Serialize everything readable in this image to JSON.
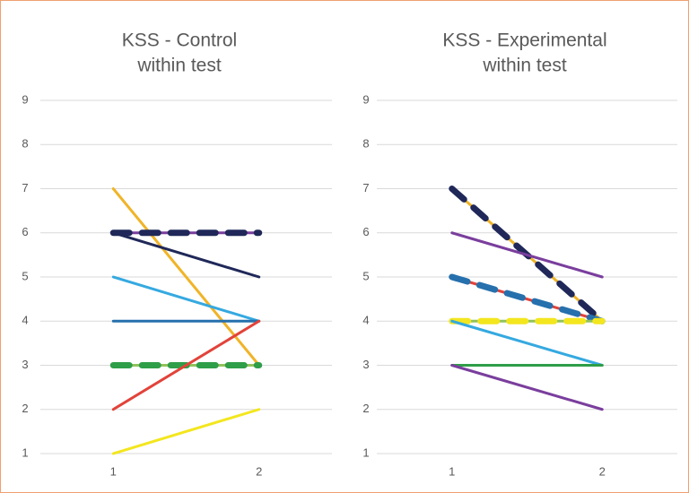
{
  "chart_data": [
    {
      "type": "line",
      "title": [
        "KSS - Control",
        "within test"
      ],
      "categories": [
        "1",
        "2"
      ],
      "ylim": [
        1,
        9
      ],
      "yticks": [
        1,
        2,
        3,
        4,
        5,
        6,
        7,
        8,
        9
      ],
      "grid": true,
      "series": [
        {
          "color": "#f0b428",
          "values": [
            7,
            3
          ]
        },
        {
          "color": "#1f2858",
          "values": [
            6,
            5
          ]
        },
        {
          "color": "#7a3e9d",
          "values": [
            6,
            6
          ]
        },
        {
          "color": "#1f2858",
          "values": [
            6,
            6
          ],
          "dash": true
        },
        {
          "color": "#35a9e0",
          "values": [
            5,
            4
          ]
        },
        {
          "color": "#2670ad",
          "values": [
            4,
            4
          ]
        },
        {
          "color": "#92c35c",
          "values": [
            3,
            3
          ]
        },
        {
          "color": "#2f9e48",
          "values": [
            3,
            3
          ],
          "dash": true
        },
        {
          "color": "#e2433a",
          "values": [
            2,
            4
          ]
        },
        {
          "color": "#f3e61e",
          "values": [
            1,
            2
          ]
        }
      ]
    },
    {
      "type": "line",
      "title": [
        "KSS - Experimental",
        "within test"
      ],
      "categories": [
        "1",
        "2"
      ],
      "ylim": [
        1,
        9
      ],
      "yticks": [
        1,
        2,
        3,
        4,
        5,
        6,
        7,
        8,
        9
      ],
      "grid": true,
      "series": [
        {
          "color": "#f0b428",
          "values": [
            7,
            4
          ]
        },
        {
          "color": "#1f2858",
          "values": [
            7,
            4
          ],
          "dash": true
        },
        {
          "color": "#7a3e9d",
          "values": [
            6,
            5
          ]
        },
        {
          "color": "#e2433a",
          "values": [
            5,
            4
          ]
        },
        {
          "color": "#2670ad",
          "values": [
            5,
            4
          ],
          "dash": true
        },
        {
          "color": "#92c35c",
          "values": [
            4,
            4
          ]
        },
        {
          "color": "#f3e61e",
          "values": [
            4,
            4
          ],
          "dash": true
        },
        {
          "color": "#35a9e0",
          "values": [
            4,
            3
          ]
        },
        {
          "color": "#2f9e48",
          "values": [
            3,
            3
          ]
        },
        {
          "color": "#7a3e9d",
          "values": [
            3,
            2
          ]
        }
      ]
    }
  ]
}
